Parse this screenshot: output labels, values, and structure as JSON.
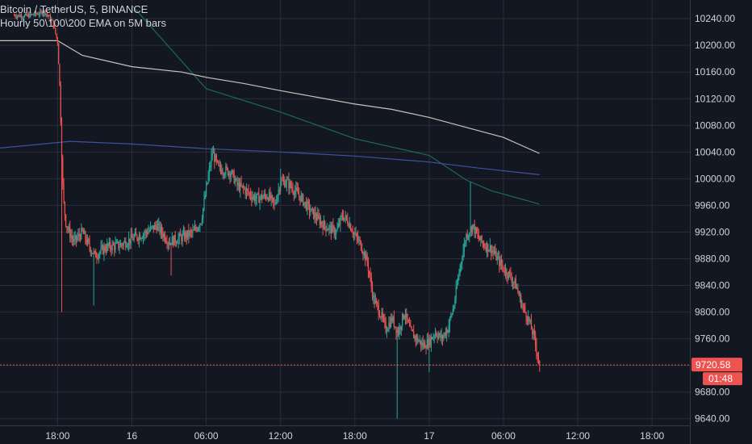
{
  "header": {
    "title": "Bitcoin / TetherUS, 5, BINANCE",
    "indicator": "Hourly 50\\100\\200 EMA on 5M bars"
  },
  "colors": {
    "background": "#131722",
    "grid": "#2a2e39",
    "up": "#26a69a",
    "down": "#ef5350",
    "ema50": "#1f6b52",
    "ema100": "#3d52a0",
    "ema200": "#c8c3bc",
    "price_line": "#ef5350",
    "text": "#d1d4dc"
  },
  "chart_data": {
    "type": "candlestick",
    "symbol": "Bitcoin / TetherUS",
    "interval": "5",
    "exchange": "BINANCE",
    "x_tick_labels": [
      "18:00",
      "16",
      "06:00",
      "12:00",
      "18:00",
      "17",
      "06:00",
      "12:00",
      "18:00"
    ],
    "y_tick_labels": [
      "10240.00",
      "10200.00",
      "10160.00",
      "10120.00",
      "10080.00",
      "10040.00",
      "10000.00",
      "9960.00",
      "9920.00",
      "9880.00",
      "9840.00",
      "9800.00",
      "9760.00",
      "9720.00",
      "9680.00",
      "9640.00"
    ],
    "y_ticks": [
      10240,
      10200,
      10160,
      10120,
      10080,
      10040,
      10000,
      9960,
      9920,
      9880,
      9840,
      9800,
      9760,
      9720,
      9680,
      9640
    ],
    "ylim": [
      9630,
      10268
    ],
    "x_ticks_hours": [
      18,
      24,
      30,
      36,
      42,
      48,
      54,
      60,
      66
    ],
    "xlim_hours": [
      13.35,
      69.05
    ],
    "last_price": 9720.58,
    "last_price_label": "9720.58",
    "countdown": "01:48",
    "price_path": [
      [
        14.5,
        10245
      ],
      [
        15.5,
        10244
      ],
      [
        17.0,
        10250
      ],
      [
        17.6,
        10235
      ],
      [
        18.0,
        10205
      ],
      [
        18.15,
        10150
      ],
      [
        18.3,
        10060
      ],
      [
        18.45,
        9970
      ],
      [
        18.7,
        9930
      ],
      [
        19.3,
        9905
      ],
      [
        20.0,
        9920
      ],
      [
        20.5,
        9900
      ],
      [
        21.0,
        9885
      ],
      [
        22.0,
        9898
      ],
      [
        23.0,
        9900
      ],
      [
        24.0,
        9910
      ],
      [
        25.0,
        9918
      ],
      [
        26.0,
        9930
      ],
      [
        27.0,
        9905
      ],
      [
        28.0,
        9912
      ],
      [
        29.0,
        9920
      ],
      [
        29.6,
        9938
      ],
      [
        30.0,
        9985
      ],
      [
        30.5,
        10040
      ],
      [
        31.0,
        10015
      ],
      [
        32.0,
        10010
      ],
      [
        32.5,
        9990
      ],
      [
        33.0,
        9985
      ],
      [
        34.0,
        9970
      ],
      [
        35.0,
        9975
      ],
      [
        35.5,
        9960
      ],
      [
        36.0,
        9995
      ],
      [
        36.5,
        9995
      ],
      [
        37.5,
        9975
      ],
      [
        38.5,
        9950
      ],
      [
        39.5,
        9930
      ],
      [
        40.5,
        9920
      ],
      [
        41.0,
        9945
      ],
      [
        41.5,
        9935
      ],
      [
        42.0,
        9915
      ],
      [
        42.5,
        9900
      ],
      [
        43.0,
        9875
      ],
      [
        43.5,
        9820
      ],
      [
        44.0,
        9800
      ],
      [
        44.5,
        9775
      ],
      [
        45.0,
        9790
      ],
      [
        45.5,
        9770
      ],
      [
        46.0,
        9800
      ],
      [
        46.5,
        9770
      ],
      [
        47.0,
        9760
      ],
      [
        47.5,
        9750
      ],
      [
        48.0,
        9755
      ],
      [
        48.5,
        9770
      ],
      [
        49.0,
        9760
      ],
      [
        49.5,
        9775
      ],
      [
        50.0,
        9810
      ],
      [
        50.5,
        9870
      ],
      [
        51.0,
        9915
      ],
      [
        51.5,
        9930
      ],
      [
        52.0,
        9910
      ],
      [
        52.5,
        9900
      ],
      [
        53.0,
        9895
      ],
      [
        53.5,
        9880
      ],
      [
        54.0,
        9865
      ],
      [
        54.5,
        9855
      ],
      [
        55.0,
        9840
      ],
      [
        55.5,
        9810
      ],
      [
        56.0,
        9790
      ],
      [
        56.5,
        9760
      ],
      [
        56.9,
        9722
      ]
    ],
    "spikes": [
      {
        "x": 18.35,
        "y": 9800
      },
      {
        "x": 20.9,
        "y": 9810
      },
      {
        "x": 45.45,
        "y": 9640
      },
      {
        "x": 48.0,
        "y": 9710
      },
      {
        "x": 51.3,
        "y": 9995
      },
      {
        "x": 27.2,
        "y": 9855
      },
      {
        "x": 36.0,
        "y": 10015
      }
    ],
    "series": [
      {
        "name": "EMA 50",
        "color": "#1f6b52",
        "points": [
          [
            24.0,
            10260
          ],
          [
            30.0,
            10135
          ],
          [
            36.0,
            10100
          ],
          [
            42.0,
            10060
          ],
          [
            48.0,
            10035
          ],
          [
            51.0,
            9998
          ],
          [
            53.0,
            9982
          ],
          [
            56.9,
            9962
          ]
        ]
      },
      {
        "name": "EMA 100",
        "color": "#3d52a0",
        "points": [
          [
            13.35,
            10046
          ],
          [
            19.0,
            10056
          ],
          [
            24.0,
            10052
          ],
          [
            30.0,
            10045
          ],
          [
            36.0,
            10040
          ],
          [
            42.0,
            10034
          ],
          [
            48.0,
            10025
          ],
          [
            52.0,
            10016
          ],
          [
            56.9,
            10006
          ]
        ]
      },
      {
        "name": "EMA 200",
        "color": "#c8c3bc",
        "points": [
          [
            13.35,
            10207
          ],
          [
            18.0,
            10207
          ],
          [
            20.0,
            10185
          ],
          [
            24.0,
            10168
          ],
          [
            28.0,
            10160
          ],
          [
            30.0,
            10152
          ],
          [
            33.0,
            10143
          ],
          [
            36.0,
            10132
          ],
          [
            39.0,
            10122
          ],
          [
            42.0,
            10112
          ],
          [
            45.0,
            10104
          ],
          [
            48.0,
            10092
          ],
          [
            51.0,
            10077
          ],
          [
            54.0,
            10062
          ],
          [
            56.9,
            10038
          ]
        ]
      }
    ]
  }
}
